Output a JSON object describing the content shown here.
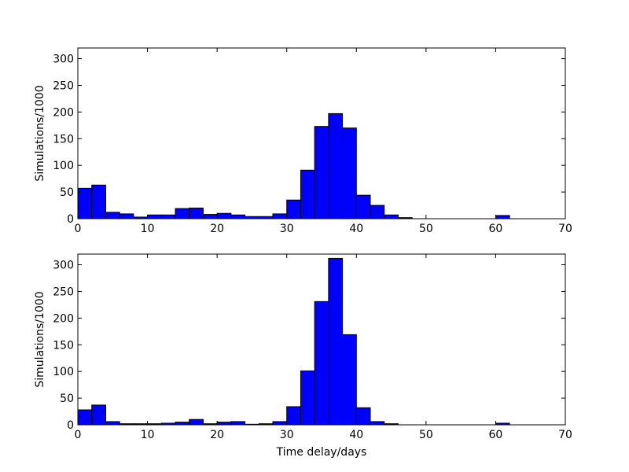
{
  "chart_data": [
    {
      "type": "histogram",
      "ylabel": "Simulations/1000",
      "color": "#0000ff",
      "bins": [
        0,
        2,
        4,
        6,
        8,
        10,
        12,
        14,
        16,
        18,
        20,
        22,
        24,
        26,
        28,
        30,
        32,
        34,
        36,
        38,
        40,
        42,
        44,
        46,
        48,
        50,
        52,
        54,
        56,
        58,
        60,
        62,
        64,
        66,
        68,
        70
      ],
      "counts": [
        57,
        63,
        12,
        9,
        3,
        7,
        7,
        19,
        20,
        8,
        10,
        7,
        4,
        4,
        9,
        35,
        91,
        173,
        197,
        170,
        44,
        25,
        7,
        2,
        0,
        0,
        0,
        0,
        0,
        0,
        6,
        0,
        0,
        0,
        0
      ],
      "xlim": [
        0,
        70
      ],
      "xticks": [
        0,
        10,
        20,
        30,
        40,
        50,
        60,
        70
      ],
      "ylim": [
        0,
        320
      ],
      "yticks": [
        0,
        50,
        100,
        150,
        200,
        250,
        300
      ]
    },
    {
      "type": "histogram",
      "ylabel": "Simulations/1000",
      "xlabel": "Time delay/days",
      "color": "#0000ff",
      "bins": [
        0,
        2,
        4,
        6,
        8,
        10,
        12,
        14,
        16,
        18,
        20,
        22,
        24,
        26,
        28,
        30,
        32,
        34,
        36,
        38,
        40,
        42,
        44,
        46,
        48,
        50,
        52,
        54,
        56,
        58,
        60,
        62,
        64,
        66,
        68,
        70
      ],
      "counts": [
        28,
        37,
        6,
        2,
        2,
        2,
        3,
        5,
        10,
        2,
        5,
        6,
        1,
        2,
        6,
        34,
        101,
        231,
        312,
        169,
        32,
        6,
        2,
        0,
        0,
        0,
        0,
        0,
        0,
        0,
        3,
        0,
        0,
        0,
        0
      ],
      "xlim": [
        0,
        70
      ],
      "xticks": [
        0,
        10,
        20,
        30,
        40,
        50,
        60,
        70
      ],
      "ylim": [
        0,
        320
      ],
      "yticks": [
        0,
        50,
        100,
        150,
        200,
        250,
        300
      ]
    }
  ]
}
